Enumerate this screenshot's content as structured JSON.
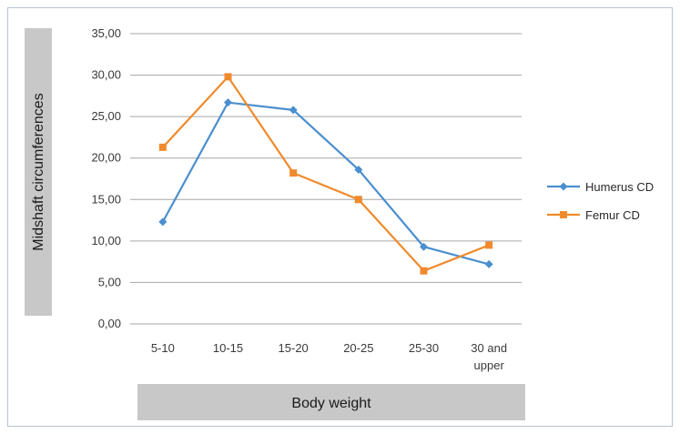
{
  "chart_data": {
    "type": "line",
    "title": "",
    "xlabel": "Body weight",
    "ylabel": "Midshaft circumferences",
    "categories": [
      [
        "5-10"
      ],
      [
        "10-15"
      ],
      [
        "15-20"
      ],
      [
        "20-25"
      ],
      [
        "25-30"
      ],
      [
        "30 and",
        "upper"
      ]
    ],
    "ylim": [
      0,
      35
    ],
    "yticks": [
      "0,00",
      "5,00",
      "10,00",
      "15,00",
      "20,00",
      "25,00",
      "30,00",
      "35,00"
    ],
    "grid": true,
    "legend_position": "right",
    "series": [
      {
        "name": "Humerus CD",
        "color": "#4a8fcf",
        "marker": "diamond",
        "values": [
          12.3,
          26.7,
          25.8,
          18.6,
          9.3,
          7.2
        ]
      },
      {
        "name": "Femur CD",
        "color": "#f08a2c",
        "marker": "square",
        "values": [
          21.3,
          29.8,
          18.2,
          15.0,
          6.4,
          9.5
        ]
      }
    ]
  },
  "colors": {
    "axis_label_band": "#c8c8c8",
    "gridline": "#a6a6a6"
  }
}
